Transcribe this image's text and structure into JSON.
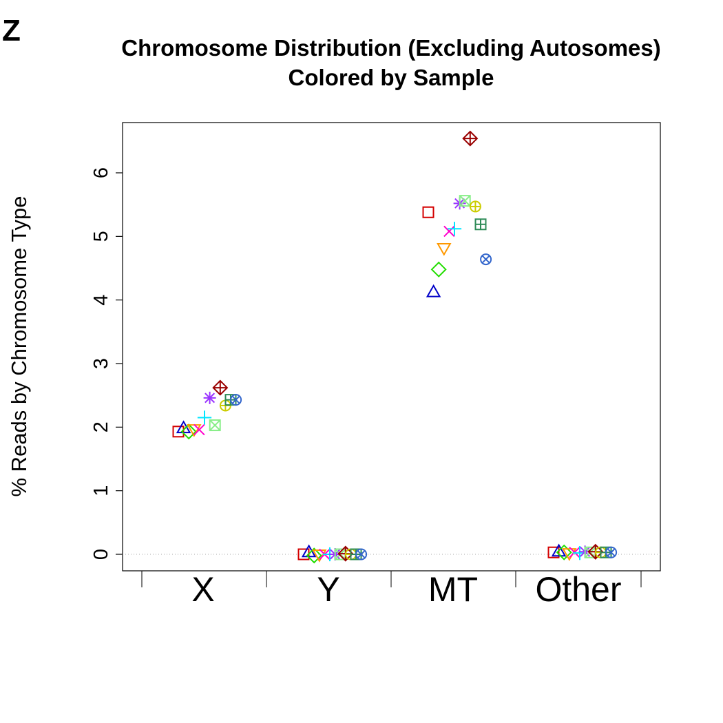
{
  "panel_label": "Z",
  "chart_data": {
    "type": "scatter",
    "title": "Chromosome Distribution (Excluding Autosomes)",
    "subtitle": "Colored by Sample",
    "xlabel": "",
    "ylabel": "% Reads by Chromosome Type",
    "categories": [
      "X",
      "Y",
      "MT",
      "Other"
    ],
    "ylim": [
      -0.26,
      6.8
    ],
    "yticks": [
      0,
      1,
      2,
      3,
      4,
      5,
      6
    ],
    "reference_line": 0,
    "grid": false,
    "legend": "none",
    "series": [
      {
        "marker": "square",
        "color": "#d40000",
        "values": [
          1.93,
          0.0,
          5.38,
          0.03
        ]
      },
      {
        "marker": "triangle-up",
        "color": "#0000c8",
        "values": [
          1.98,
          0.03,
          4.12,
          0.04
        ]
      },
      {
        "marker": "diamond",
        "color": "#22dd00",
        "values": [
          1.93,
          -0.02,
          4.48,
          0.03
        ]
      },
      {
        "marker": "triangle-down",
        "color": "#ff9900",
        "values": [
          1.97,
          0.0,
          4.82,
          0.02
        ]
      },
      {
        "marker": "x",
        "color": "#ff00cc",
        "values": [
          1.96,
          0.0,
          5.08,
          0.03
        ]
      },
      {
        "marker": "plus",
        "color": "#00e6ff",
        "values": [
          2.15,
          0.0,
          5.12,
          0.02
        ]
      },
      {
        "marker": "asterisk",
        "color": "#9933ff",
        "values": [
          2.46,
          0.0,
          5.52,
          0.04
        ]
      },
      {
        "marker": "square-x",
        "color": "#88ee88",
        "values": [
          2.03,
          0.0,
          5.56,
          0.03
        ]
      },
      {
        "marker": "diamond-plus",
        "color": "#990000",
        "values": [
          2.62,
          0.01,
          6.54,
          0.04
        ]
      },
      {
        "marker": "circle-plus",
        "color": "#cccc00",
        "values": [
          2.34,
          0.0,
          5.47,
          0.03
        ]
      },
      {
        "marker": "square-plus",
        "color": "#2e8b57",
        "values": [
          2.43,
          0.0,
          5.19,
          0.03
        ]
      },
      {
        "marker": "circle-x",
        "color": "#3366cc",
        "values": [
          2.43,
          0.0,
          4.64,
          0.03
        ]
      }
    ]
  }
}
